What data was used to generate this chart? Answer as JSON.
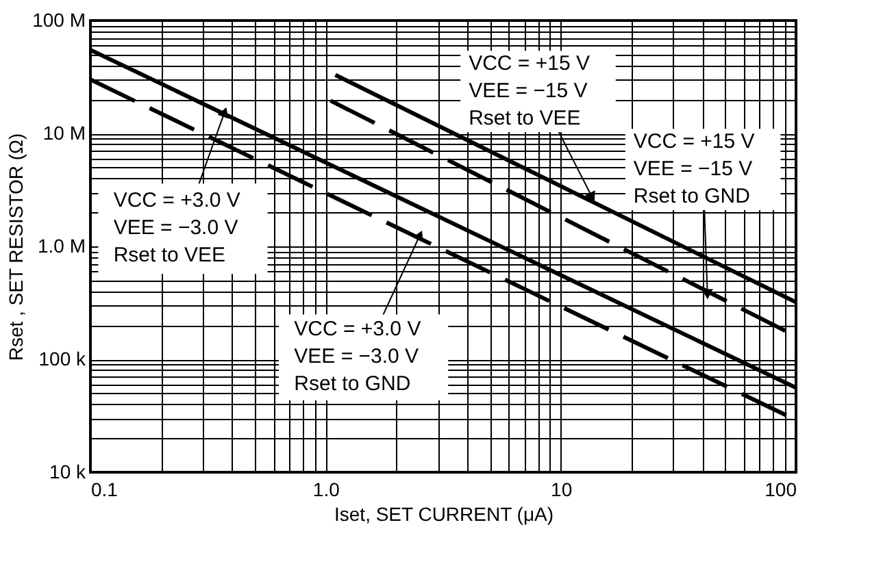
{
  "chart_data": {
    "type": "line",
    "xlabel": "Iset, SET CURRENT (μA)",
    "ylabel": "Rset , SET RESISTOR (Ω)",
    "log": "xy",
    "grid": true,
    "xlim": [
      0.1,
      100
    ],
    "ylim": [
      10000,
      100000000
    ],
    "xticks": [
      {
        "value": 0.1,
        "label": "0.1"
      },
      {
        "value": 0.2,
        "label": null
      },
      {
        "value": 0.3,
        "label": null
      },
      {
        "value": 0.4,
        "label": null
      },
      {
        "value": 0.5,
        "label": null
      },
      {
        "value": 0.6,
        "label": null
      },
      {
        "value": 0.7,
        "label": null
      },
      {
        "value": 0.8,
        "label": null
      },
      {
        "value": 0.9,
        "label": null
      },
      {
        "value": 1,
        "label": "1.0"
      },
      {
        "value": 2,
        "label": null
      },
      {
        "value": 3,
        "label": null
      },
      {
        "value": 4,
        "label": null
      },
      {
        "value": 5,
        "label": null
      },
      {
        "value": 6,
        "label": null
      },
      {
        "value": 7,
        "label": null
      },
      {
        "value": 8,
        "label": null
      },
      {
        "value": 9,
        "label": null
      },
      10,
      {
        "value": 20,
        "label": null
      },
      {
        "value": 30,
        "label": null
      },
      {
        "value": 40,
        "label": null
      },
      {
        "value": 50,
        "label": null
      },
      {
        "value": 60,
        "label": null
      },
      {
        "value": 70,
        "label": null
      },
      {
        "value": 80,
        "label": null
      },
      {
        "value": 90,
        "label": null
      },
      100
    ],
    "yticks": [
      {
        "value": 10000,
        "label": "10 k"
      },
      {
        "value": 20000,
        "label": null
      },
      {
        "value": 30000,
        "label": null
      },
      {
        "value": 40000,
        "label": null
      },
      {
        "value": 50000,
        "label": null
      },
      {
        "value": 60000,
        "label": null
      },
      {
        "value": 70000,
        "label": null
      },
      {
        "value": 80000,
        "label": null
      },
      {
        "value": 90000,
        "label": null
      },
      {
        "value": 100000,
        "label": "100 k"
      },
      {
        "value": 200000,
        "label": null
      },
      {
        "value": 300000,
        "label": null
      },
      {
        "value": 400000,
        "label": null
      },
      {
        "value": 500000,
        "label": null
      },
      {
        "value": 600000,
        "label": null
      },
      {
        "value": 700000,
        "label": null
      },
      {
        "value": 800000,
        "label": null
      },
      {
        "value": 900000,
        "label": null
      },
      {
        "value": 1000000,
        "label": "1.0 M"
      },
      {
        "value": 2000000,
        "label": null
      },
      {
        "value": 3000000,
        "label": null
      },
      {
        "value": 4000000,
        "label": null
      },
      {
        "value": 5000000,
        "label": null
      },
      {
        "value": 6000000,
        "label": null
      },
      {
        "value": 7000000,
        "label": null
      },
      {
        "value": 8000000,
        "label": null
      },
      {
        "value": 9000000,
        "label": null
      },
      {
        "value": 10000000,
        "label": "10 M"
      },
      {
        "value": 20000000,
        "label": null
      },
      {
        "value": 30000000,
        "label": null
      },
      {
        "value": 40000000,
        "label": null
      },
      {
        "value": 50000000,
        "label": null
      },
      {
        "value": 60000000,
        "label": null
      },
      {
        "value": 70000000,
        "label": null
      },
      {
        "value": 80000000,
        "label": null
      },
      {
        "value": 90000000,
        "label": null
      },
      {
        "value": 100000000,
        "label": "100 M"
      }
    ],
    "series": [
      {
        "color": "#000000",
        "line_style": "solid",
        "x": [
          0.1,
          100
        ],
        "values": [
          55000000,
          56000
        ]
      },
      {
        "color": "#000000",
        "line_style": "dashed",
        "x": [
          0.1,
          100
        ],
        "values": [
          30000000,
          29000
        ]
      },
      {
        "color": "#000000",
        "line_style": "solid",
        "x": [
          1.1,
          100
        ],
        "values": [
          33000000,
          320000
        ]
      },
      {
        "color": "#000000",
        "line_style": "dashed",
        "x": [
          1.05,
          100
        ],
        "values": [
          19500000,
          160000
        ]
      }
    ],
    "annotations": [
      {
        "text": "VCC = +3.0 V\nVEE = −3.0 V\nRset to VEE",
        "x": 0.37,
        "y": 15000000
      },
      {
        "text": "VCC = +3.0 V\nVEE = −3.0 V\nRset to GND",
        "x": 2.5,
        "y": 1220000
      },
      {
        "text": "VCC = +15 V\nVEE = −15 V\nRset to VEE",
        "x": 13.5,
        "y": 2800000
      },
      {
        "text": "VCC = +15 V\nVEE = −15 V\nRset to GND",
        "x": 42,
        "y": 390000
      }
    ]
  }
}
